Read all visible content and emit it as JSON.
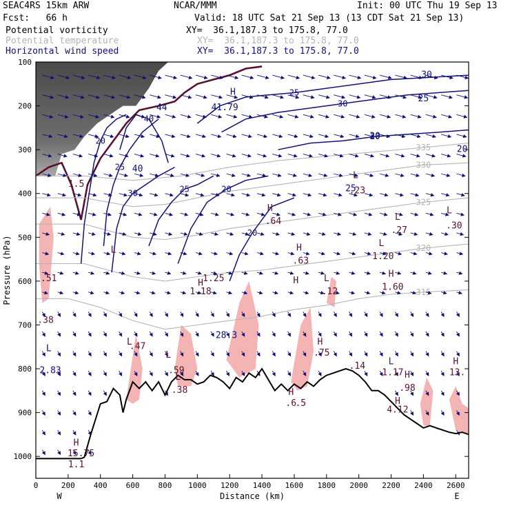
{
  "header": {
    "model": "SEAC4RS 15km ARW",
    "org": "NCAR/MMM",
    "init": "Init: 00 UTC Thu 19 Sep 13",
    "fcst": "Fcst:   66 h",
    "valid": "Valid: 18 UTC Sat 21 Sep 13 (13 CDT Sat 21 Sep 13)",
    "fields": [
      {
        "name": "Potential vorticity",
        "xy": "XY=  36.1,187.3 to 175.8, 77.0",
        "color": "#000000"
      },
      {
        "name": "Potential temperature",
        "xy": "XY=  36.1,187.3 to 175.8, 77.0",
        "color": "#b4b4b4"
      },
      {
        "name": "Horizontal wind speed",
        "xy": "XY=  36.1,187.3 to 175.8, 77.0",
        "color": "#10107a"
      }
    ]
  },
  "chart_data": {
    "type": "cross-section",
    "xlabel": "Distance (km)",
    "ylabel": "Pressure (hPa)",
    "xlim": [
      0,
      2680
    ],
    "ylim": [
      1050,
      100
    ],
    "x_ticks": [
      0,
      200,
      400,
      600,
      800,
      1000,
      1200,
      1400,
      1600,
      1800,
      2000,
      2200,
      2400,
      2600
    ],
    "y_ticks": [
      100,
      200,
      300,
      400,
      500,
      600,
      700,
      800,
      900,
      1000
    ],
    "x_end_labels": {
      "left": "W",
      "right": "E"
    },
    "colors": {
      "terrain": "#000000",
      "wind_contour": "#10107a",
      "theta_contour": "#b4b4b4",
      "pv_shading": "#f4b4b4",
      "pv_2pvu": "#5a1030",
      "high_pv_shading": "#505050"
    },
    "terrain_profile": [
      [
        0,
        1005
      ],
      [
        280,
        1005
      ],
      [
        300,
        1002
      ],
      [
        340,
        950
      ],
      [
        400,
        880
      ],
      [
        440,
        875
      ],
      [
        480,
        845
      ],
      [
        520,
        860
      ],
      [
        540,
        900
      ],
      [
        560,
        870
      ],
      [
        600,
        830
      ],
      [
        640,
        845
      ],
      [
        680,
        830
      ],
      [
        720,
        850
      ],
      [
        760,
        830
      ],
      [
        800,
        860
      ],
      [
        840,
        830
      ],
      [
        880,
        815
      ],
      [
        920,
        825
      ],
      [
        960,
        825
      ],
      [
        1000,
        835
      ],
      [
        1040,
        830
      ],
      [
        1080,
        815
      ],
      [
        1120,
        820
      ],
      [
        1160,
        830
      ],
      [
        1200,
        845
      ],
      [
        1240,
        820
      ],
      [
        1280,
        830
      ],
      [
        1320,
        810
      ],
      [
        1360,
        820
      ],
      [
        1400,
        800
      ],
      [
        1440,
        825
      ],
      [
        1480,
        850
      ],
      [
        1520,
        835
      ],
      [
        1560,
        850
      ],
      [
        1600,
        835
      ],
      [
        1640,
        845
      ],
      [
        1680,
        830
      ],
      [
        1720,
        840
      ],
      [
        1760,
        825
      ],
      [
        1800,
        815
      ],
      [
        1840,
        810
      ],
      [
        1880,
        805
      ],
      [
        1920,
        800
      ],
      [
        1960,
        805
      ],
      [
        2000,
        815
      ],
      [
        2040,
        830
      ],
      [
        2080,
        850
      ],
      [
        2120,
        850
      ],
      [
        2160,
        860
      ],
      [
        2200,
        875
      ],
      [
        2240,
        890
      ],
      [
        2280,
        905
      ],
      [
        2320,
        915
      ],
      [
        2360,
        925
      ],
      [
        2400,
        935
      ],
      [
        2440,
        930
      ],
      [
        2480,
        935
      ],
      [
        2520,
        940
      ],
      [
        2560,
        945
      ],
      [
        2600,
        948
      ],
      [
        2640,
        945
      ],
      [
        2680,
        950
      ]
    ],
    "wind_speed_contours": [
      {
        "label": "20",
        "points": [
          [
            280,
            560
          ],
          [
            300,
            470
          ],
          [
            330,
            400
          ],
          [
            360,
            330
          ],
          [
            400,
            280
          ],
          [
            440,
            250
          ],
          [
            500,
            230
          ],
          [
            560,
            220
          ]
        ]
      },
      {
        "label": "25",
        "points": [
          [
            420,
            520
          ],
          [
            440,
            440
          ],
          [
            480,
            380
          ],
          [
            520,
            340
          ],
          [
            580,
            300
          ],
          [
            660,
            260
          ],
          [
            760,
            230
          ]
        ]
      },
      {
        "label": "30",
        "points": [
          [
            470,
            580
          ],
          [
            500,
            480
          ],
          [
            540,
            430
          ],
          [
            600,
            400
          ],
          [
            680,
            380
          ],
          [
            760,
            360
          ],
          [
            860,
            340
          ]
        ]
      },
      {
        "label": "40",
        "points": [
          [
            520,
            300
          ],
          [
            560,
            250
          ],
          [
            620,
            220
          ],
          [
            700,
            230
          ],
          [
            780,
            280
          ],
          [
            820,
            330
          ]
        ]
      },
      {
        "label": "25",
        "points": [
          [
            700,
            520
          ],
          [
            760,
            460
          ],
          [
            840,
            420
          ],
          [
            920,
            390
          ],
          [
            1000,
            380
          ],
          [
            1100,
            360
          ]
        ]
      },
      {
        "label": "20",
        "points": [
          [
            880,
            560
          ],
          [
            960,
            480
          ],
          [
            1060,
            420
          ],
          [
            1180,
            390
          ],
          [
            1300,
            370
          ],
          [
            1440,
            360
          ]
        ]
      },
      {
        "label": "20",
        "points": [
          [
            1200,
            600
          ],
          [
            1260,
            540
          ],
          [
            1340,
            490
          ],
          [
            1460,
            430
          ],
          [
            1600,
            410
          ]
        ]
      },
      {
        "label": "25",
        "points": [
          [
            1000,
            240
          ],
          [
            1140,
            200
          ],
          [
            1300,
            180
          ],
          [
            1440,
            175
          ],
          [
            1600,
            170
          ],
          [
            1800,
            160
          ],
          [
            2000,
            150
          ],
          [
            2200,
            140
          ],
          [
            2680,
            130
          ]
        ]
      },
      {
        "label": "30",
        "points": [
          [
            1150,
            260
          ],
          [
            1300,
            230
          ],
          [
            1500,
            215
          ],
          [
            1700,
            205
          ],
          [
            1900,
            195
          ],
          [
            2100,
            185
          ],
          [
            2300,
            175
          ],
          [
            2680,
            165
          ]
        ]
      },
      {
        "label": "20",
        "points": [
          [
            1500,
            300
          ],
          [
            1700,
            285
          ],
          [
            1900,
            280
          ],
          [
            2100,
            270
          ],
          [
            2300,
            265
          ],
          [
            2500,
            260
          ],
          [
            2680,
            255
          ]
        ]
      }
    ],
    "theta_contours": [
      {
        "label": "315",
        "points": [
          [
            0,
            640
          ],
          [
            200,
            640
          ],
          [
            400,
            660
          ],
          [
            600,
            690
          ],
          [
            800,
            710
          ],
          [
            1000,
            700
          ],
          [
            1200,
            690
          ],
          [
            1400,
            680
          ],
          [
            1600,
            665
          ],
          [
            1800,
            655
          ],
          [
            2000,
            640
          ],
          [
            2200,
            630
          ],
          [
            2400,
            625
          ],
          [
            2680,
            620
          ]
        ]
      },
      {
        "label": "320",
        "points": [
          [
            0,
            560
          ],
          [
            300,
            560
          ],
          [
            600,
            590
          ],
          [
            800,
            600
          ],
          [
            1000,
            590
          ],
          [
            1200,
            580
          ],
          [
            1400,
            575
          ],
          [
            1600,
            565
          ],
          [
            1800,
            555
          ],
          [
            2000,
            545
          ],
          [
            2200,
            535
          ],
          [
            2400,
            525
          ],
          [
            2680,
            515
          ]
        ]
      },
      {
        "label": "325",
        "points": [
          [
            0,
            470
          ],
          [
            300,
            470
          ],
          [
            600,
            500
          ],
          [
            800,
            505
          ],
          [
            1000,
            495
          ],
          [
            1200,
            480
          ],
          [
            1400,
            470
          ],
          [
            1600,
            460
          ],
          [
            1800,
            450
          ],
          [
            2000,
            440
          ],
          [
            2200,
            430
          ],
          [
            2400,
            420
          ],
          [
            2680,
            410
          ]
        ]
      },
      {
        "label": "330",
        "points": [
          [
            0,
            410
          ],
          [
            300,
            410
          ],
          [
            600,
            430
          ],
          [
            800,
            425
          ],
          [
            1000,
            410
          ],
          [
            1200,
            395
          ],
          [
            1400,
            385
          ],
          [
            1600,
            375
          ],
          [
            1800,
            365
          ],
          [
            2000,
            355
          ],
          [
            2200,
            345
          ],
          [
            2400,
            335
          ],
          [
            2680,
            330
          ]
        ]
      },
      {
        "label": "335",
        "points": [
          [
            0,
            360
          ],
          [
            300,
            360
          ],
          [
            600,
            370
          ],
          [
            900,
            360
          ],
          [
            1200,
            340
          ],
          [
            1500,
            325
          ],
          [
            1800,
            315
          ],
          [
            2100,
            305
          ],
          [
            2400,
            295
          ],
          [
            2680,
            285
          ]
        ]
      }
    ],
    "labels": [
      {
        "text": "1.5",
        "x": 250,
        "p": 385,
        "color": "#5a1030"
      },
      {
        "text": "44",
        "x": 780,
        "p": 210,
        "color": "#10107a"
      },
      {
        "text": "41.79",
        "x": 1170,
        "p": 210,
        "color": "#10107a"
      },
      {
        "text": "H",
        "x": 1220,
        "p": 175,
        "color": "#10107a"
      },
      {
        "text": "L",
        "x": 480,
        "p": 535,
        "color": "#5a1030"
      },
      {
        "text": ".51",
        "x": 80,
        "p": 600,
        "color": "#5a1030"
      },
      {
        "text": ".38",
        "x": 60,
        "p": 695,
        "color": "#5a1030"
      },
      {
        "text": "L",
        "x": 80,
        "p": 760,
        "color": "#10107a"
      },
      {
        "text": "2.83",
        "x": 90,
        "p": 810,
        "color": "#10107a"
      },
      {
        "text": "H",
        "x": 250,
        "p": 975,
        "color": "#5a1030"
      },
      {
        "text": "15.75",
        "x": 280,
        "p": 1000,
        "color": "#5a1030"
      },
      {
        "text": "1.1",
        "x": 250,
        "p": 1025,
        "color": "#5a1030"
      },
      {
        "text": "L",
        "x": 580,
        "p": 745,
        "color": "#5a1030"
      },
      {
        "text": ".47",
        "x": 630,
        "p": 755,
        "color": "#5a1030"
      },
      {
        "text": "L",
        "x": 820,
        "p": 775,
        "color": "#5a1030"
      },
      {
        "text": ".59",
        "x": 870,
        "p": 810,
        "color": "#5a1030"
      },
      {
        "text": "L",
        "x": 880,
        "p": 825,
        "color": "#5a1030"
      },
      {
        "text": ".38",
        "x": 890,
        "p": 855,
        "color": "#5a1030"
      },
      {
        "text": "H",
        "x": 1020,
        "p": 610,
        "color": "#5a1030"
      },
      {
        "text": "1.18",
        "x": 1020,
        "p": 630,
        "color": "#5a1030"
      },
      {
        "text": "1.25",
        "x": 1100,
        "p": 600,
        "color": "#5a1030"
      },
      {
        "text": "28.3",
        "x": 1180,
        "p": 730,
        "color": "#10107a"
      },
      {
        "text": "H",
        "x": 1450,
        "p": 440,
        "color": "#5a1030"
      },
      {
        "text": ".64",
        "x": 1470,
        "p": 470,
        "color": "#5a1030"
      },
      {
        "text": "H",
        "x": 1630,
        "p": 530,
        "color": "#5a1030"
      },
      {
        "text": ".63",
        "x": 1640,
        "p": 560,
        "color": "#5a1030"
      },
      {
        "text": "L",
        "x": 1800,
        "p": 600,
        "color": "#5a1030"
      },
      {
        "text": ".12",
        "x": 1820,
        "p": 630,
        "color": "#5a1030"
      },
      {
        "text": "H",
        "x": 1760,
        "p": 745,
        "color": "#5a1030"
      },
      {
        "text": ".75",
        "x": 1770,
        "p": 770,
        "color": "#5a1030"
      },
      {
        "text": "H",
        "x": 1580,
        "p": 860,
        "color": "#5a1030"
      },
      {
        "text": ".6",
        "x": 1580,
        "p": 885,
        "color": "#5a1030"
      },
      {
        "text": ".5",
        "x": 1640,
        "p": 885,
        "color": "#5a1030"
      },
      {
        "text": "L",
        "x": 1980,
        "p": 365,
        "color": "#5a1030"
      },
      {
        "text": ".23",
        "x": 1990,
        "p": 400,
        "color": "#5a1030"
      },
      {
        "text": "L",
        "x": 2240,
        "p": 460,
        "color": "#5a1030"
      },
      {
        "text": ".27",
        "x": 2250,
        "p": 490,
        "color": "#5a1030"
      },
      {
        "text": "L",
        "x": 2560,
        "p": 445,
        "color": "#5a1030"
      },
      {
        "text": ".30",
        "x": 2590,
        "p": 480,
        "color": "#5a1030"
      },
      {
        "text": "L",
        "x": 2140,
        "p": 520,
        "color": "#5a1030"
      },
      {
        "text": "1.20",
        "x": 2150,
        "p": 550,
        "color": "#5a1030"
      },
      {
        "text": "H",
        "x": 2200,
        "p": 590,
        "color": "#5a1030"
      },
      {
        "text": "1.60",
        "x": 2210,
        "p": 620,
        "color": "#5a1030"
      },
      {
        "text": ".14",
        "x": 1990,
        "p": 800,
        "color": "#5a1030"
      },
      {
        "text": "L",
        "x": 2200,
        "p": 790,
        "color": "#5a1030"
      },
      {
        "text": "1.17",
        "x": 2210,
        "p": 815,
        "color": "#5a1030"
      },
      {
        "text": "H",
        "x": 2300,
        "p": 820,
        "color": "#5a1030"
      },
      {
        "text": ".98",
        "x": 2300,
        "p": 850,
        "color": "#5a1030"
      },
      {
        "text": "H",
        "x": 2240,
        "p": 880,
        "color": "#5a1030"
      },
      {
        "text": "4.12",
        "x": 2240,
        "p": 900,
        "color": "#5a1030"
      },
      {
        "text": "H",
        "x": 2600,
        "p": 790,
        "color": "#5a1030"
      },
      {
        "text": "13.",
        "x": 2610,
        "p": 815,
        "color": "#5a1030"
      },
      {
        "text": "25",
        "x": 2400,
        "p": 190,
        "color": "#10107a"
      },
      {
        "text": "30",
        "x": 2420,
        "p": 135,
        "color": "#10107a"
      },
      {
        "text": "30",
        "x": 2100,
        "p": 275,
        "color": "#10107a"
      },
      {
        "text": "20",
        "x": 2640,
        "p": 305,
        "color": "#10107a"
      },
      {
        "text": "25",
        "x": 1950,
        "p": 395,
        "color": "#10107a"
      },
      {
        "text": "H",
        "x": 1610,
        "p": 605,
        "color": "#5a1030"
      },
      {
        "text": "40",
        "x": 630,
        "p": 350,
        "color": "#10107a"
      }
    ]
  }
}
